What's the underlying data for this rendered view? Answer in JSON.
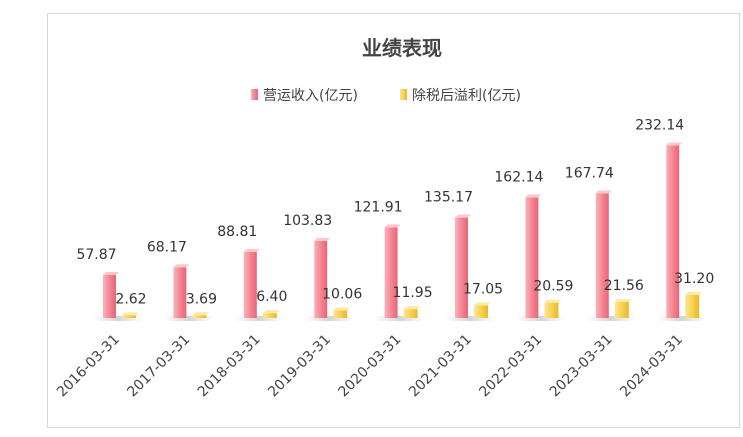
{
  "chart_data": {
    "type": "bar",
    "title": "业绩表现",
    "categories": [
      "2016-03-31",
      "2017-03-31",
      "2018-03-31",
      "2019-03-31",
      "2020-03-31",
      "2021-03-31",
      "2022-03-31",
      "2023-03-31",
      "2024-03-31"
    ],
    "series": [
      {
        "name": "营运收入(亿元)",
        "color": "#f4828f",
        "values": [
          57.87,
          68.17,
          88.81,
          103.83,
          121.91,
          135.17,
          162.14,
          167.74,
          232.14
        ],
        "labels": [
          "57.87",
          "68.17",
          "88.81",
          "103.83",
          "121.91",
          "135.17",
          "162.14",
          "167.74",
          "232.14"
        ]
      },
      {
        "name": "除税后溢利(亿元)",
        "color": "#f7d04a",
        "values": [
          2.62,
          3.69,
          6.4,
          10.06,
          11.95,
          17.05,
          20.59,
          21.56,
          31.2
        ],
        "labels": [
          "2.62",
          "3.69",
          "6.40",
          "10.06",
          "11.95",
          "17.05",
          "20.59",
          "21.56",
          "31.20"
        ]
      }
    ],
    "legend_position": "top",
    "grid": false,
    "ylim": [
      0,
      250
    ]
  }
}
